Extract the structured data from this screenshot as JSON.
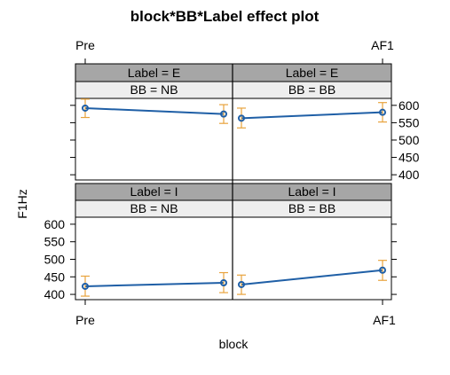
{
  "chart_data": {
    "type": "line",
    "title": "block*BB*Label effect plot",
    "xlabel": "block",
    "ylabel": "F1Hz",
    "x_categories": [
      "Pre",
      "AF1"
    ],
    "y_ticks": [
      400,
      450,
      500,
      550,
      600
    ],
    "ylim": [
      385,
      620
    ],
    "grid": false,
    "colors": {
      "line": "#1f5fa6",
      "errorbar": "#e8a33d",
      "strip_dark": "#a6a6a6",
      "strip_light": "#eeeeee"
    },
    "panels": [
      {
        "label": "Label = E",
        "bb": "BB = NB",
        "row": "top",
        "col": "left",
        "values": [
          592,
          575
        ],
        "lower": [
          565,
          548
        ],
        "upper": [
          618,
          602
        ]
      },
      {
        "label": "Label = E",
        "bb": "BB = BB",
        "row": "top",
        "col": "right",
        "values": [
          563,
          580
        ],
        "lower": [
          535,
          552
        ],
        "upper": [
          592,
          608
        ]
      },
      {
        "label": "Label = I",
        "bb": "BB = NB",
        "row": "bottom",
        "col": "left",
        "values": [
          423,
          433
        ],
        "lower": [
          395,
          405
        ],
        "upper": [
          452,
          462
        ]
      },
      {
        "label": "Label = I",
        "bb": "BB = BB",
        "row": "bottom",
        "col": "right",
        "values": [
          428,
          469
        ],
        "lower": [
          400,
          440
        ],
        "upper": [
          455,
          497
        ]
      }
    ]
  }
}
